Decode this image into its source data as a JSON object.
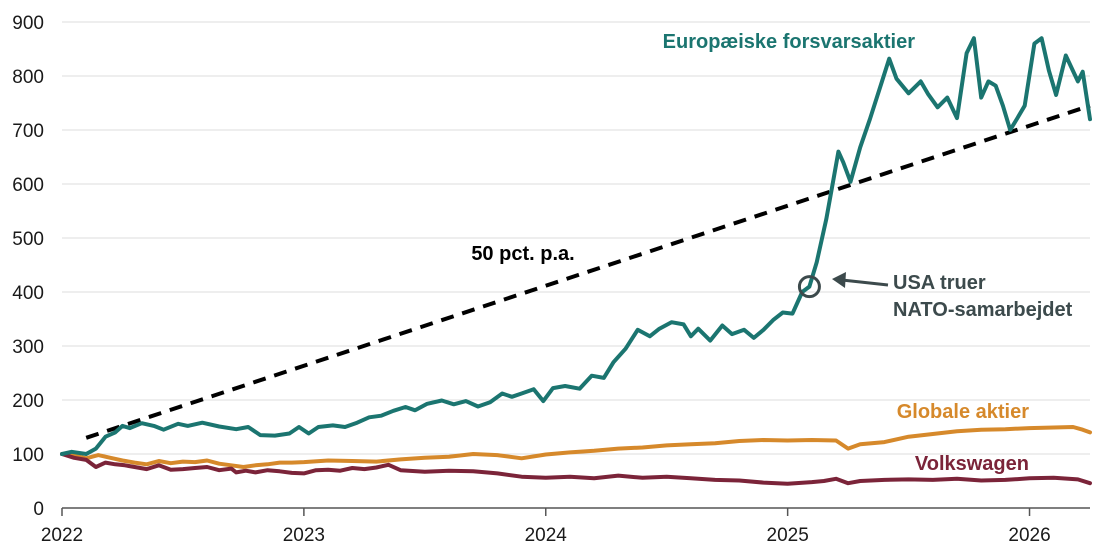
{
  "chart_data": {
    "type": "line",
    "x_domain": [
      2022,
      2026.25
    ],
    "ylim": [
      0,
      900
    ],
    "yticks": [
      0,
      100,
      200,
      300,
      400,
      500,
      600,
      700,
      800,
      900
    ],
    "xticks": [
      {
        "value": 2022,
        "label": "2022"
      },
      {
        "value": 2023,
        "label": "2023"
      },
      {
        "value": 2024,
        "label": "2024"
      },
      {
        "value": 2025,
        "label": "2025"
      },
      {
        "value": 2026,
        "label": "2026"
      }
    ],
    "grid": true,
    "series": [
      {
        "name": "Europæiske forsvarsaktier",
        "color": "#1b7570",
        "points": [
          [
            2022.0,
            100
          ],
          [
            2022.04,
            104
          ],
          [
            2022.1,
            100
          ],
          [
            2022.14,
            110
          ],
          [
            2022.18,
            132
          ],
          [
            2022.22,
            140
          ],
          [
            2022.25,
            152
          ],
          [
            2022.28,
            148
          ],
          [
            2022.33,
            157
          ],
          [
            2022.38,
            152
          ],
          [
            2022.42,
            145
          ],
          [
            2022.48,
            156
          ],
          [
            2022.52,
            152
          ],
          [
            2022.58,
            158
          ],
          [
            2022.65,
            151
          ],
          [
            2022.72,
            146
          ],
          [
            2022.77,
            150
          ],
          [
            2022.82,
            135
          ],
          [
            2022.88,
            134
          ],
          [
            2022.94,
            138
          ],
          [
            2022.98,
            150
          ],
          [
            2023.02,
            138
          ],
          [
            2023.06,
            150
          ],
          [
            2023.12,
            153
          ],
          [
            2023.17,
            150
          ],
          [
            2023.22,
            158
          ],
          [
            2023.27,
            168
          ],
          [
            2023.32,
            171
          ],
          [
            2023.37,
            180
          ],
          [
            2023.42,
            187
          ],
          [
            2023.46,
            181
          ],
          [
            2023.51,
            193
          ],
          [
            2023.57,
            199
          ],
          [
            2023.62,
            192
          ],
          [
            2023.67,
            198
          ],
          [
            2023.72,
            188
          ],
          [
            2023.77,
            196
          ],
          [
            2023.82,
            212
          ],
          [
            2023.86,
            206
          ],
          [
            2023.9,
            212
          ],
          [
            2023.95,
            220
          ],
          [
            2023.99,
            198
          ],
          [
            2024.03,
            222
          ],
          [
            2024.08,
            226
          ],
          [
            2024.14,
            221
          ],
          [
            2024.19,
            245
          ],
          [
            2024.24,
            241
          ],
          [
            2024.28,
            270
          ],
          [
            2024.33,
            295
          ],
          [
            2024.38,
            330
          ],
          [
            2024.43,
            318
          ],
          [
            2024.47,
            332
          ],
          [
            2024.52,
            344
          ],
          [
            2024.57,
            340
          ],
          [
            2024.6,
            318
          ],
          [
            2024.63,
            332
          ],
          [
            2024.68,
            310
          ],
          [
            2024.73,
            338
          ],
          [
            2024.77,
            322
          ],
          [
            2024.82,
            330
          ],
          [
            2024.86,
            315
          ],
          [
            2024.9,
            330
          ],
          [
            2024.94,
            348
          ],
          [
            2024.98,
            362
          ],
          [
            2025.02,
            360
          ],
          [
            2025.06,
            400
          ],
          [
            2025.09,
            410
          ],
          [
            2025.12,
            455
          ],
          [
            2025.16,
            535
          ],
          [
            2025.19,
            610
          ],
          [
            2025.21,
            660
          ],
          [
            2025.23,
            640
          ],
          [
            2025.26,
            604
          ],
          [
            2025.3,
            668
          ],
          [
            2025.34,
            720
          ],
          [
            2025.39,
            790
          ],
          [
            2025.42,
            832
          ],
          [
            2025.45,
            795
          ],
          [
            2025.5,
            768
          ],
          [
            2025.55,
            790
          ],
          [
            2025.58,
            767
          ],
          [
            2025.62,
            742
          ],
          [
            2025.66,
            760
          ],
          [
            2025.7,
            722
          ],
          [
            2025.74,
            842
          ],
          [
            2025.77,
            870
          ],
          [
            2025.8,
            760
          ],
          [
            2025.83,
            790
          ],
          [
            2025.86,
            782
          ],
          [
            2025.89,
            745
          ],
          [
            2025.92,
            700
          ],
          [
            2025.95,
            722
          ],
          [
            2025.98,
            745
          ],
          [
            2026.02,
            860
          ],
          [
            2026.05,
            870
          ],
          [
            2026.08,
            810
          ],
          [
            2026.11,
            765
          ],
          [
            2026.15,
            838
          ],
          [
            2026.2,
            790
          ],
          [
            2026.22,
            808
          ],
          [
            2026.25,
            720
          ]
        ]
      },
      {
        "name": "Globale aktier",
        "color": "#d6892b",
        "points": [
          [
            2022.0,
            100
          ],
          [
            2022.05,
            97
          ],
          [
            2022.1,
            92
          ],
          [
            2022.15,
            98
          ],
          [
            2022.2,
            93
          ],
          [
            2022.25,
            88
          ],
          [
            2022.3,
            84
          ],
          [
            2022.35,
            81
          ],
          [
            2022.4,
            87
          ],
          [
            2022.45,
            83
          ],
          [
            2022.5,
            86
          ],
          [
            2022.55,
            85
          ],
          [
            2022.6,
            88
          ],
          [
            2022.65,
            82
          ],
          [
            2022.7,
            79
          ],
          [
            2022.75,
            76
          ],
          [
            2022.8,
            79
          ],
          [
            2022.85,
            81
          ],
          [
            2022.9,
            84
          ],
          [
            2022.95,
            84
          ],
          [
            2023.0,
            85
          ],
          [
            2023.1,
            88
          ],
          [
            2023.2,
            87
          ],
          [
            2023.3,
            86
          ],
          [
            2023.4,
            90
          ],
          [
            2023.5,
            93
          ],
          [
            2023.6,
            95
          ],
          [
            2023.7,
            100
          ],
          [
            2023.8,
            98
          ],
          [
            2023.9,
            92
          ],
          [
            2024.0,
            99
          ],
          [
            2024.1,
            103
          ],
          [
            2024.2,
            106
          ],
          [
            2024.3,
            110
          ],
          [
            2024.4,
            112
          ],
          [
            2024.5,
            116
          ],
          [
            2024.6,
            118
          ],
          [
            2024.7,
            120
          ],
          [
            2024.8,
            124
          ],
          [
            2024.9,
            126
          ],
          [
            2025.0,
            125
          ],
          [
            2025.1,
            126
          ],
          [
            2025.2,
            125
          ],
          [
            2025.25,
            110
          ],
          [
            2025.3,
            118
          ],
          [
            2025.4,
            122
          ],
          [
            2025.5,
            132
          ],
          [
            2025.6,
            137
          ],
          [
            2025.7,
            142
          ],
          [
            2025.8,
            145
          ],
          [
            2025.9,
            146
          ],
          [
            2026.0,
            148
          ],
          [
            2026.1,
            149
          ],
          [
            2026.18,
            150
          ],
          [
            2026.22,
            145
          ],
          [
            2026.25,
            140
          ]
        ]
      },
      {
        "name": "Volkswagen",
        "color": "#7b2439",
        "points": [
          [
            2022.0,
            100
          ],
          [
            2022.05,
            93
          ],
          [
            2022.1,
            89
          ],
          [
            2022.14,
            76
          ],
          [
            2022.18,
            84
          ],
          [
            2022.22,
            81
          ],
          [
            2022.26,
            79
          ],
          [
            2022.3,
            76
          ],
          [
            2022.35,
            72
          ],
          [
            2022.4,
            79
          ],
          [
            2022.45,
            71
          ],
          [
            2022.5,
            72
          ],
          [
            2022.55,
            74
          ],
          [
            2022.6,
            76
          ],
          [
            2022.65,
            70
          ],
          [
            2022.7,
            73
          ],
          [
            2022.72,
            66
          ],
          [
            2022.76,
            69
          ],
          [
            2022.8,
            66
          ],
          [
            2022.85,
            70
          ],
          [
            2022.9,
            68
          ],
          [
            2022.95,
            65
          ],
          [
            2023.0,
            64
          ],
          [
            2023.05,
            70
          ],
          [
            2023.1,
            71
          ],
          [
            2023.15,
            69
          ],
          [
            2023.2,
            74
          ],
          [
            2023.25,
            72
          ],
          [
            2023.3,
            75
          ],
          [
            2023.35,
            80
          ],
          [
            2023.4,
            70
          ],
          [
            2023.5,
            67
          ],
          [
            2023.6,
            69
          ],
          [
            2023.7,
            68
          ],
          [
            2023.8,
            64
          ],
          [
            2023.9,
            58
          ],
          [
            2024.0,
            56
          ],
          [
            2024.1,
            58
          ],
          [
            2024.2,
            55
          ],
          [
            2024.3,
            60
          ],
          [
            2024.4,
            56
          ],
          [
            2024.5,
            58
          ],
          [
            2024.6,
            55
          ],
          [
            2024.7,
            52
          ],
          [
            2024.8,
            51
          ],
          [
            2024.9,
            47
          ],
          [
            2025.0,
            45
          ],
          [
            2025.1,
            48
          ],
          [
            2025.15,
            50
          ],
          [
            2025.2,
            54
          ],
          [
            2025.25,
            46
          ],
          [
            2025.3,
            50
          ],
          [
            2025.4,
            52
          ],
          [
            2025.5,
            53
          ],
          [
            2025.6,
            52
          ],
          [
            2025.7,
            54
          ],
          [
            2025.8,
            51
          ],
          [
            2025.9,
            52
          ],
          [
            2026.0,
            55
          ],
          [
            2026.1,
            56
          ],
          [
            2026.2,
            53
          ],
          [
            2026.25,
            46
          ]
        ]
      },
      {
        "name": "50 pct. p.a.",
        "color": "#000000",
        "style": "dashed",
        "points": [
          [
            2022.1,
            130
          ],
          [
            2026.25,
            745
          ]
        ]
      }
    ],
    "annotations": {
      "trend_label": "50 pct. p.a.",
      "event_marker": {
        "x": 2025.09,
        "y": 410
      },
      "event_label_line1": "USA truer",
      "event_label_line2": "NATO-samarbejdet"
    }
  }
}
